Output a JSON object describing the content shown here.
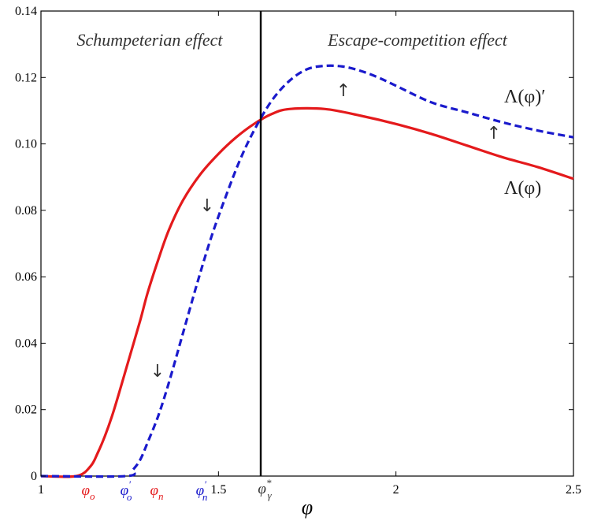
{
  "chart_data": {
    "type": "line",
    "title": "",
    "xlabel": "φ",
    "ylabel": "",
    "xlim": [
      1,
      2.5
    ],
    "ylim": [
      0,
      0.14
    ],
    "xticks": [
      {
        "value": 1,
        "label": "1"
      },
      {
        "value": 1.5,
        "label": "1.5"
      },
      {
        "value": 2,
        "label": "2"
      },
      {
        "value": 2.5,
        "label": "2.5"
      }
    ],
    "yticks": [
      {
        "value": 0,
        "label": "0"
      },
      {
        "value": 0.02,
        "label": "0.02"
      },
      {
        "value": 0.04,
        "label": "0.04"
      },
      {
        "value": 0.06,
        "label": "0.06"
      },
      {
        "value": 0.08,
        "label": "0.08"
      },
      {
        "value": 0.1,
        "label": "0.10"
      },
      {
        "value": 0.12,
        "label": "0.12"
      },
      {
        "value": 0.14,
        "label": "0.14"
      }
    ],
    "grid": false,
    "series": [
      {
        "name": "Λ(φ)",
        "color": "#e41a1c",
        "style": "solid",
        "x": [
          1.0,
          1.1,
          1.14,
          1.16,
          1.18,
          1.2,
          1.22,
          1.25,
          1.28,
          1.3,
          1.33,
          1.36,
          1.4,
          1.45,
          1.5,
          1.55,
          1.6,
          1.65,
          1.7,
          1.8,
          1.9,
          2.0,
          2.1,
          2.2,
          2.3,
          2.4,
          2.5
        ],
        "y": [
          0.0,
          0.0,
          0.003,
          0.007,
          0.012,
          0.018,
          0.025,
          0.036,
          0.047,
          0.055,
          0.065,
          0.074,
          0.083,
          0.091,
          0.097,
          0.102,
          0.106,
          0.109,
          0.1105,
          0.1105,
          0.1085,
          0.106,
          0.103,
          0.0995,
          0.096,
          0.093,
          0.0895
        ]
      },
      {
        "name": "Λ(φ)′",
        "color": "#1a1acc",
        "style": "dashed",
        "x": [
          1.0,
          1.24,
          1.26,
          1.28,
          1.3,
          1.33,
          1.36,
          1.4,
          1.44,
          1.48,
          1.52,
          1.56,
          1.6,
          1.65,
          1.7,
          1.75,
          1.8,
          1.85,
          1.9,
          1.95,
          2.0,
          2.1,
          2.2,
          2.3,
          2.4,
          2.5
        ],
        "y": [
          0.0,
          0.0,
          0.002,
          0.005,
          0.01,
          0.018,
          0.028,
          0.043,
          0.058,
          0.072,
          0.084,
          0.095,
          0.104,
          0.113,
          0.119,
          0.1225,
          0.1235,
          0.1233,
          0.122,
          0.12,
          0.1175,
          0.1125,
          0.1095,
          0.1065,
          0.104,
          0.102
        ]
      }
    ],
    "vline": {
      "x": 1.6,
      "color": "#000000"
    },
    "regions": [
      {
        "label": "Schumpeterian effect"
      },
      {
        "label": "Escape-competition effect"
      }
    ],
    "curve_labels": [
      {
        "text": "Λ(φ)′"
      },
      {
        "text": "Λ(φ)"
      }
    ],
    "arrows": [
      {
        "glyph": "↓",
        "x": 1.49,
        "y": 0.083
      },
      {
        "glyph": "↓",
        "x": 1.32,
        "y": 0.03
      },
      {
        "glyph": "↑",
        "x": 1.84,
        "y": 0.116
      },
      {
        "glyph": "↑",
        "x": 2.27,
        "y": 0.103
      }
    ],
    "axis_markers": [
      {
        "base": "φ",
        "sub": "o",
        "sup": "",
        "x": 1.2,
        "color": "#e41a1c"
      },
      {
        "base": "φ",
        "sub": "o",
        "sup": "′",
        "x": 1.36,
        "color": "#1a1acc"
      },
      {
        "base": "φ",
        "sub": "n",
        "sup": "",
        "x": 1.49,
        "color": "#e41a1c"
      },
      {
        "base": "φ",
        "sub": "n",
        "sup": "′",
        "x": 1.66,
        "color": "#1a1acc"
      },
      {
        "base": "φ",
        "sub": "γ",
        "sup": "*",
        "x": 1.95,
        "color": "#333333"
      }
    ]
  }
}
